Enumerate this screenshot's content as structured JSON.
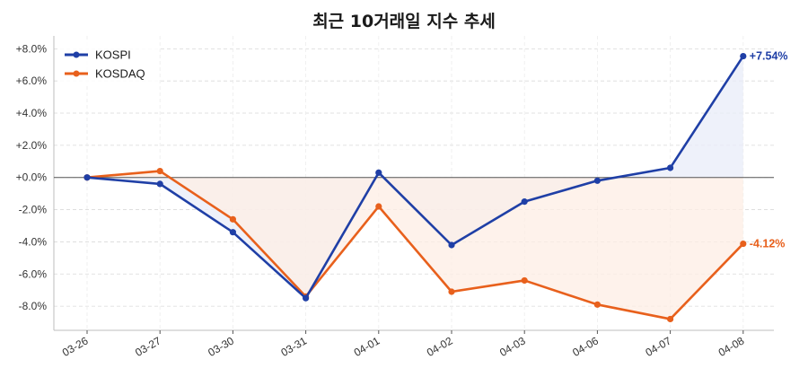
{
  "chart_data": {
    "type": "line",
    "title": "최근 10거래일 지수 추세",
    "x": [
      "03-26",
      "03-27",
      "03-30",
      "03-31",
      "04-01",
      "04-02",
      "04-03",
      "04-06",
      "04-07",
      "04-08"
    ],
    "ylim": [
      -9.5,
      8.8
    ],
    "y_ticks": [
      "+8.0%",
      "+6.0%",
      "+4.0%",
      "+2.0%",
      "+0.0%",
      "-2.0%",
      "-4.0%",
      "-6.0%",
      "-8.0%"
    ],
    "y_tick_values": [
      8,
      6,
      4,
      2,
      0,
      -2,
      -4,
      -6,
      -8
    ],
    "grid": true,
    "legend_position": "top-left",
    "series": [
      {
        "name": "KOSPI",
        "color": "#1f3fa6",
        "fill_color": "#e8ecf8",
        "values": [
          0.0,
          -0.4,
          -3.4,
          -7.5,
          0.3,
          -4.2,
          -1.5,
          -0.2,
          0.6,
          7.54
        ],
        "end_label": "+7.54%"
      },
      {
        "name": "KOSDAQ",
        "color": "#e8601c",
        "fill_color": "#fdeee4",
        "values": [
          0.0,
          0.4,
          -2.6,
          -7.4,
          -1.8,
          -7.1,
          -6.4,
          -7.9,
          -8.8,
          -4.12
        ],
        "end_label": "-4.12%"
      }
    ]
  }
}
